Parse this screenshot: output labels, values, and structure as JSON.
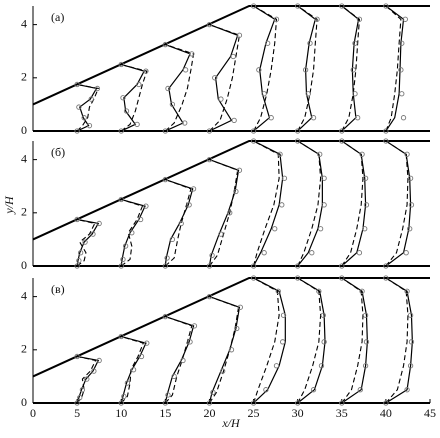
{
  "y_label": "y/H",
  "x_label": "x/H",
  "chart_data": [
    {
      "type": "profile",
      "label": "(а)",
      "xlim": [
        0,
        45
      ],
      "ylim": [
        0,
        4.7
      ],
      "yticks": [
        0,
        2,
        4
      ],
      "wall": {
        "x": [
          0,
          24.5,
          45
        ],
        "y": [
          1,
          4.7,
          4.7
        ]
      },
      "stations": [
        {
          "y": [
            0,
            0.2,
            0.5,
            0.9,
            1.2,
            1.6,
            1.75
          ],
          "symbols": [
            5,
            6.4,
            5.8,
            5.2,
            6.6,
            7.3,
            5
          ],
          "solid": [
            5,
            6.3,
            5.7,
            5.3,
            6.5,
            7.2,
            5
          ],
          "dashed": [
            5,
            5.6,
            6.2,
            6.4,
            6.9,
            7.4,
            5
          ]
        },
        {
          "y": [
            0,
            0.25,
            0.75,
            1.25,
            1.75,
            2.25,
            2.5
          ],
          "symbols": [
            10,
            11.8,
            10.6,
            10.2,
            12,
            12.8,
            10
          ],
          "solid": [
            10,
            11.6,
            10.5,
            10.3,
            11.8,
            12.6,
            10
          ],
          "dashed": [
            10,
            11,
            11.6,
            12,
            12.4,
            12.9,
            10
          ]
        },
        {
          "y": [
            0,
            0.3,
            1,
            1.6,
            2.3,
            2.9,
            3.25
          ],
          "symbols": [
            15,
            17.2,
            15.8,
            15.3,
            17.3,
            18,
            15
          ],
          "solid": [
            15,
            17,
            15.7,
            15.4,
            17,
            17.8,
            15
          ],
          "dashed": [
            15,
            16,
            16.9,
            17.5,
            17.9,
            18.2,
            15
          ]
        },
        {
          "y": [
            0,
            0.4,
            1.2,
            2,
            2.8,
            3.6,
            4
          ],
          "symbols": [
            20,
            22.8,
            21.3,
            20.6,
            22.7,
            23.4,
            20
          ],
          "solid": [
            20,
            22.5,
            21,
            20.7,
            22.4,
            23.2,
            20
          ],
          "dashed": [
            20,
            21.2,
            22,
            22.6,
            23,
            23.4,
            20
          ]
        },
        {
          "y": [
            0,
            0.5,
            1.4,
            2.3,
            3.3,
            4.2,
            4.7
          ],
          "symbols": [
            25,
            27,
            26.2,
            25.6,
            26.6,
            27.6,
            25
          ],
          "solid": [
            25,
            26.8,
            26,
            25.7,
            26.4,
            27.4,
            25
          ],
          "dashed": [
            25,
            25.8,
            26.5,
            27,
            27.4,
            27.6,
            25
          ]
        },
        {
          "y": [
            0,
            0.5,
            1.4,
            2.3,
            3.3,
            4.2,
            4.7
          ],
          "symbols": [
            30,
            31.8,
            31.2,
            30.9,
            31.4,
            32.2,
            30
          ],
          "solid": [
            30,
            31.6,
            31,
            30.9,
            31.3,
            32,
            30
          ],
          "dashed": [
            30,
            30.8,
            31.4,
            31.8,
            32,
            32.2,
            30
          ]
        },
        {
          "y": [
            0,
            0.5,
            1.4,
            2.3,
            3.3,
            4.2,
            4.7
          ],
          "symbols": [
            35,
            36.8,
            36.5,
            36.3,
            36.5,
            37,
            35
          ],
          "solid": [
            35,
            36.6,
            36.3,
            36.2,
            36.4,
            36.9,
            35
          ],
          "dashed": [
            35,
            35.8,
            36.3,
            36.6,
            36.8,
            37,
            35
          ]
        },
        {
          "y": [
            0,
            0.5,
            1.4,
            2.3,
            3.3,
            4.2,
            4.7
          ],
          "symbols": [
            40,
            42,
            41.8,
            41.7,
            41.8,
            42.2,
            40
          ],
          "solid": [
            40,
            41,
            41.5,
            41.6,
            41.7,
            42,
            40
          ],
          "dashed": [
            40,
            40.6,
            41,
            41.3,
            41.5,
            41.7,
            40
          ]
        }
      ]
    },
    {
      "type": "profile",
      "label": "(б)",
      "xlim": [
        0,
        45
      ],
      "ylim": [
        0,
        4.7
      ],
      "yticks": [
        0,
        2,
        4
      ],
      "wall": {
        "x": [
          0,
          24.5,
          45
        ],
        "y": [
          1,
          4.7,
          4.7
        ]
      },
      "stations": [
        {
          "y": [
            0,
            0.2,
            0.5,
            0.9,
            1.2,
            1.6,
            1.75
          ],
          "symbols": [
            5,
            5.2,
            5.4,
            5.9,
            6.8,
            7.5,
            5
          ],
          "solid": [
            5,
            5.1,
            5.3,
            5.8,
            6.7,
            7.4,
            5
          ],
          "dashed": [
            5,
            5.8,
            6,
            5.3,
            6.4,
            7,
            5
          ]
        },
        {
          "y": [
            0,
            0.25,
            0.75,
            1.25,
            1.75,
            2.25,
            2.5
          ],
          "symbols": [
            10,
            10.2,
            10.5,
            11.2,
            12.2,
            12.8,
            10
          ],
          "solid": [
            10,
            10.1,
            10.4,
            11,
            12,
            12.7,
            10
          ],
          "dashed": [
            10,
            11,
            11.2,
            10.8,
            11.8,
            12.4,
            10
          ]
        },
        {
          "y": [
            0,
            0.3,
            1,
            1.6,
            2.3,
            2.9,
            3.25
          ],
          "symbols": [
            15,
            15.2,
            15.8,
            16.8,
            17.7,
            18.2,
            15
          ],
          "solid": [
            15,
            15.1,
            15.6,
            16.6,
            17.6,
            18.1,
            15
          ],
          "dashed": [
            15,
            16,
            16.4,
            16.8,
            17.4,
            17.9,
            15
          ]
        },
        {
          "y": [
            0,
            0.4,
            1.2,
            2,
            2.8,
            3.6,
            4
          ],
          "symbols": [
            20,
            20.3,
            21.3,
            22.3,
            23,
            23.4,
            20
          ],
          "solid": [
            20,
            20.2,
            21.1,
            22.1,
            22.9,
            23.3,
            20
          ],
          "dashed": [
            20,
            20.9,
            21.6,
            22.3,
            22.8,
            23.2,
            20
          ]
        },
        {
          "y": [
            0,
            0.5,
            1.4,
            2.3,
            3.3,
            4.2,
            4.7
          ],
          "symbols": [
            25,
            26.2,
            27.4,
            28.2,
            28.5,
            28,
            25
          ],
          "solid": [
            25,
            25.8,
            27,
            27.9,
            28.3,
            28,
            25
          ],
          "dashed": [
            25,
            25.4,
            26.3,
            27.3,
            27.9,
            27.8,
            25
          ]
        },
        {
          "y": [
            0,
            0.5,
            1.4,
            2.3,
            3.3,
            4.2,
            4.7
          ],
          "symbols": [
            30,
            31.6,
            32.6,
            33,
            33,
            32.5,
            30
          ],
          "solid": [
            30,
            31.2,
            32.3,
            32.8,
            32.8,
            32.4,
            30
          ],
          "dashed": [
            30,
            30.7,
            31.6,
            32.3,
            32.6,
            32.4,
            30
          ]
        },
        {
          "y": [
            0,
            0.5,
            1.4,
            2.3,
            3.3,
            4.2,
            4.7
          ],
          "symbols": [
            35,
            37,
            37.6,
            37.8,
            37.7,
            37.3,
            35
          ],
          "solid": [
            35,
            36.7,
            37.4,
            37.7,
            37.6,
            37.2,
            35
          ],
          "dashed": [
            35,
            36,
            36.7,
            37.2,
            37.4,
            37.2,
            35
          ]
        },
        {
          "y": [
            0,
            0.5,
            1.4,
            2.3,
            3.3,
            4.2,
            4.7
          ],
          "symbols": [
            40,
            42.3,
            42.7,
            42.9,
            42.8,
            42.4,
            40
          ],
          "solid": [
            40,
            42,
            42.6,
            42.8,
            42.7,
            42.3,
            40
          ],
          "dashed": [
            40,
            41.2,
            41.9,
            42.4,
            42.5,
            42.3,
            40
          ]
        }
      ]
    },
    {
      "type": "profile",
      "label": "(в)",
      "xlim": [
        0,
        45
      ],
      "ylim": [
        0,
        4.7
      ],
      "yticks": [
        0,
        2,
        4
      ],
      "xticks": [
        0,
        5,
        10,
        15,
        20,
        25,
        30,
        35,
        40,
        45
      ],
      "wall": {
        "x": [
          0,
          24.5,
          45
        ],
        "y": [
          1,
          4.7,
          4.7
        ]
      },
      "stations": [
        {
          "y": [
            0,
            0.2,
            0.5,
            0.9,
            1.2,
            1.6,
            1.75
          ],
          "symbols": [
            5,
            5.3,
            5.6,
            6.1,
            6.9,
            7.5,
            5
          ],
          "solid": [
            5,
            5.2,
            5.5,
            6,
            6.8,
            7.4,
            5
          ],
          "dashed": [
            5,
            5.5,
            5.8,
            5.6,
            6.5,
            7.1,
            5
          ]
        },
        {
          "y": [
            0,
            0.25,
            0.75,
            1.25,
            1.75,
            2.25,
            2.5
          ],
          "symbols": [
            10,
            10.3,
            10.7,
            11.4,
            12.3,
            12.9,
            10
          ],
          "solid": [
            10,
            10.2,
            10.6,
            11.2,
            12.1,
            12.8,
            10
          ],
          "dashed": [
            10,
            10.7,
            11,
            11.1,
            11.9,
            12.5,
            10
          ]
        },
        {
          "y": [
            0,
            0.3,
            1,
            1.6,
            2.3,
            2.9,
            3.25
          ],
          "symbols": [
            15,
            15.3,
            16,
            17,
            17.8,
            18.3,
            15
          ],
          "solid": [
            15,
            15.2,
            15.8,
            16.8,
            17.7,
            18.2,
            15
          ],
          "dashed": [
            15,
            15.8,
            16.3,
            16.9,
            17.5,
            18,
            15
          ]
        },
        {
          "y": [
            0,
            0.4,
            1.2,
            2,
            2.8,
            3.6,
            4
          ],
          "symbols": [
            20,
            20.4,
            21.5,
            22.5,
            23.1,
            23.5,
            20
          ],
          "solid": [
            20,
            20.3,
            21.3,
            22.3,
            23,
            23.4,
            20
          ],
          "dashed": [
            20,
            20.8,
            21.6,
            22.3,
            22.9,
            23.3,
            20
          ]
        },
        {
          "y": [
            0,
            0.5,
            1.4,
            2.3,
            3.3,
            4.2,
            4.7
          ],
          "symbols": [
            25,
            26.4,
            27.6,
            28.3,
            28.4,
            27.8,
            25
          ],
          "solid": [
            25,
            26.6,
            27.9,
            28.6,
            28.6,
            27.9,
            25
          ],
          "dashed": [
            25,
            25.5,
            26.5,
            27.4,
            27.9,
            27.7,
            25
          ]
        },
        {
          "y": [
            0,
            0.5,
            1.4,
            2.3,
            3.3,
            4.2,
            4.7
          ],
          "symbols": [
            30,
            31.8,
            32.7,
            33,
            32.9,
            32.4,
            30
          ],
          "solid": [
            30,
            31.9,
            32.8,
            33.1,
            33,
            32.5,
            30
          ],
          "dashed": [
            30,
            30.8,
            31.7,
            32.4,
            32.6,
            32.4,
            30
          ]
        },
        {
          "y": [
            0,
            0.5,
            1.4,
            2.3,
            3.3,
            4.2,
            4.7
          ],
          "symbols": [
            35,
            37.1,
            37.7,
            37.8,
            37.7,
            37.3,
            35
          ],
          "solid": [
            35,
            37.2,
            37.7,
            37.9,
            37.8,
            37.3,
            35
          ],
          "dashed": [
            35,
            36.1,
            36.8,
            37.3,
            37.4,
            37.2,
            35
          ]
        },
        {
          "y": [
            0,
            0.5,
            1.4,
            2.3,
            3.3,
            4.2,
            4.7
          ],
          "symbols": [
            40,
            42.4,
            42.8,
            42.9,
            42.8,
            42.4,
            40
          ],
          "solid": [
            40,
            42.4,
            42.8,
            43,
            42.9,
            42.4,
            40
          ],
          "dashed": [
            40,
            41.3,
            42,
            42.4,
            42.5,
            42.3,
            40
          ]
        }
      ]
    }
  ]
}
